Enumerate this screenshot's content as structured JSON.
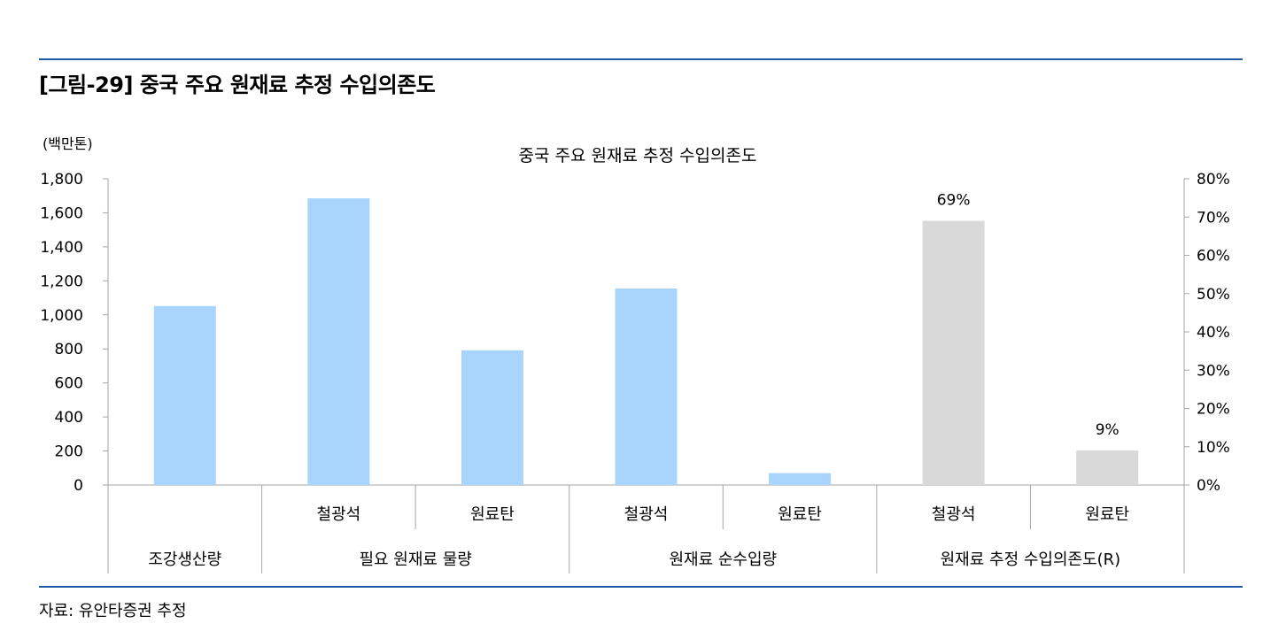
{
  "figure_title": "[그림-29] 중국 주요 원재료 추정 수입의존도",
  "source_note": "자료: 유안타증권 추정",
  "chart_data": {
    "type": "bar",
    "title": "중국 주요 원재료 추정 수입의존도",
    "y_unit_label": "(백만톤)",
    "ylim": [
      0,
      1800
    ],
    "yticks": [
      "0",
      "200",
      "400",
      "600",
      "800",
      "1,000",
      "1,200",
      "1,400",
      "1,600",
      "1,800"
    ],
    "y2lim": [
      0,
      80
    ],
    "y2ticks": [
      "0%",
      "10%",
      "20%",
      "30%",
      "40%",
      "50%",
      "60%",
      "70%",
      "80%"
    ],
    "categories": [
      "",
      "철광석",
      "원료탄",
      "철광석",
      "원료탄",
      "철광석",
      "원료탄"
    ],
    "groups": [
      {
        "label": "조강생산량",
        "span": 1
      },
      {
        "label": "필요 원재료 물량",
        "span": 2
      },
      {
        "label": "원재료 순수입량",
        "span": 2
      },
      {
        "label": "원재료 추정 수입의존도(R)",
        "span": 2
      }
    ],
    "series": [
      {
        "axis": "left",
        "color": "#a9d4fb",
        "values": [
          1052,
          1685,
          792,
          1155,
          70,
          null,
          null
        ]
      },
      {
        "axis": "right",
        "color": "#d9d9d9",
        "values": [
          null,
          null,
          null,
          null,
          null,
          69,
          9
        ],
        "data_labels": [
          "",
          "",
          "",
          "",
          "",
          "69%",
          "9%"
        ]
      }
    ],
    "grid": false,
    "legend": "none"
  }
}
